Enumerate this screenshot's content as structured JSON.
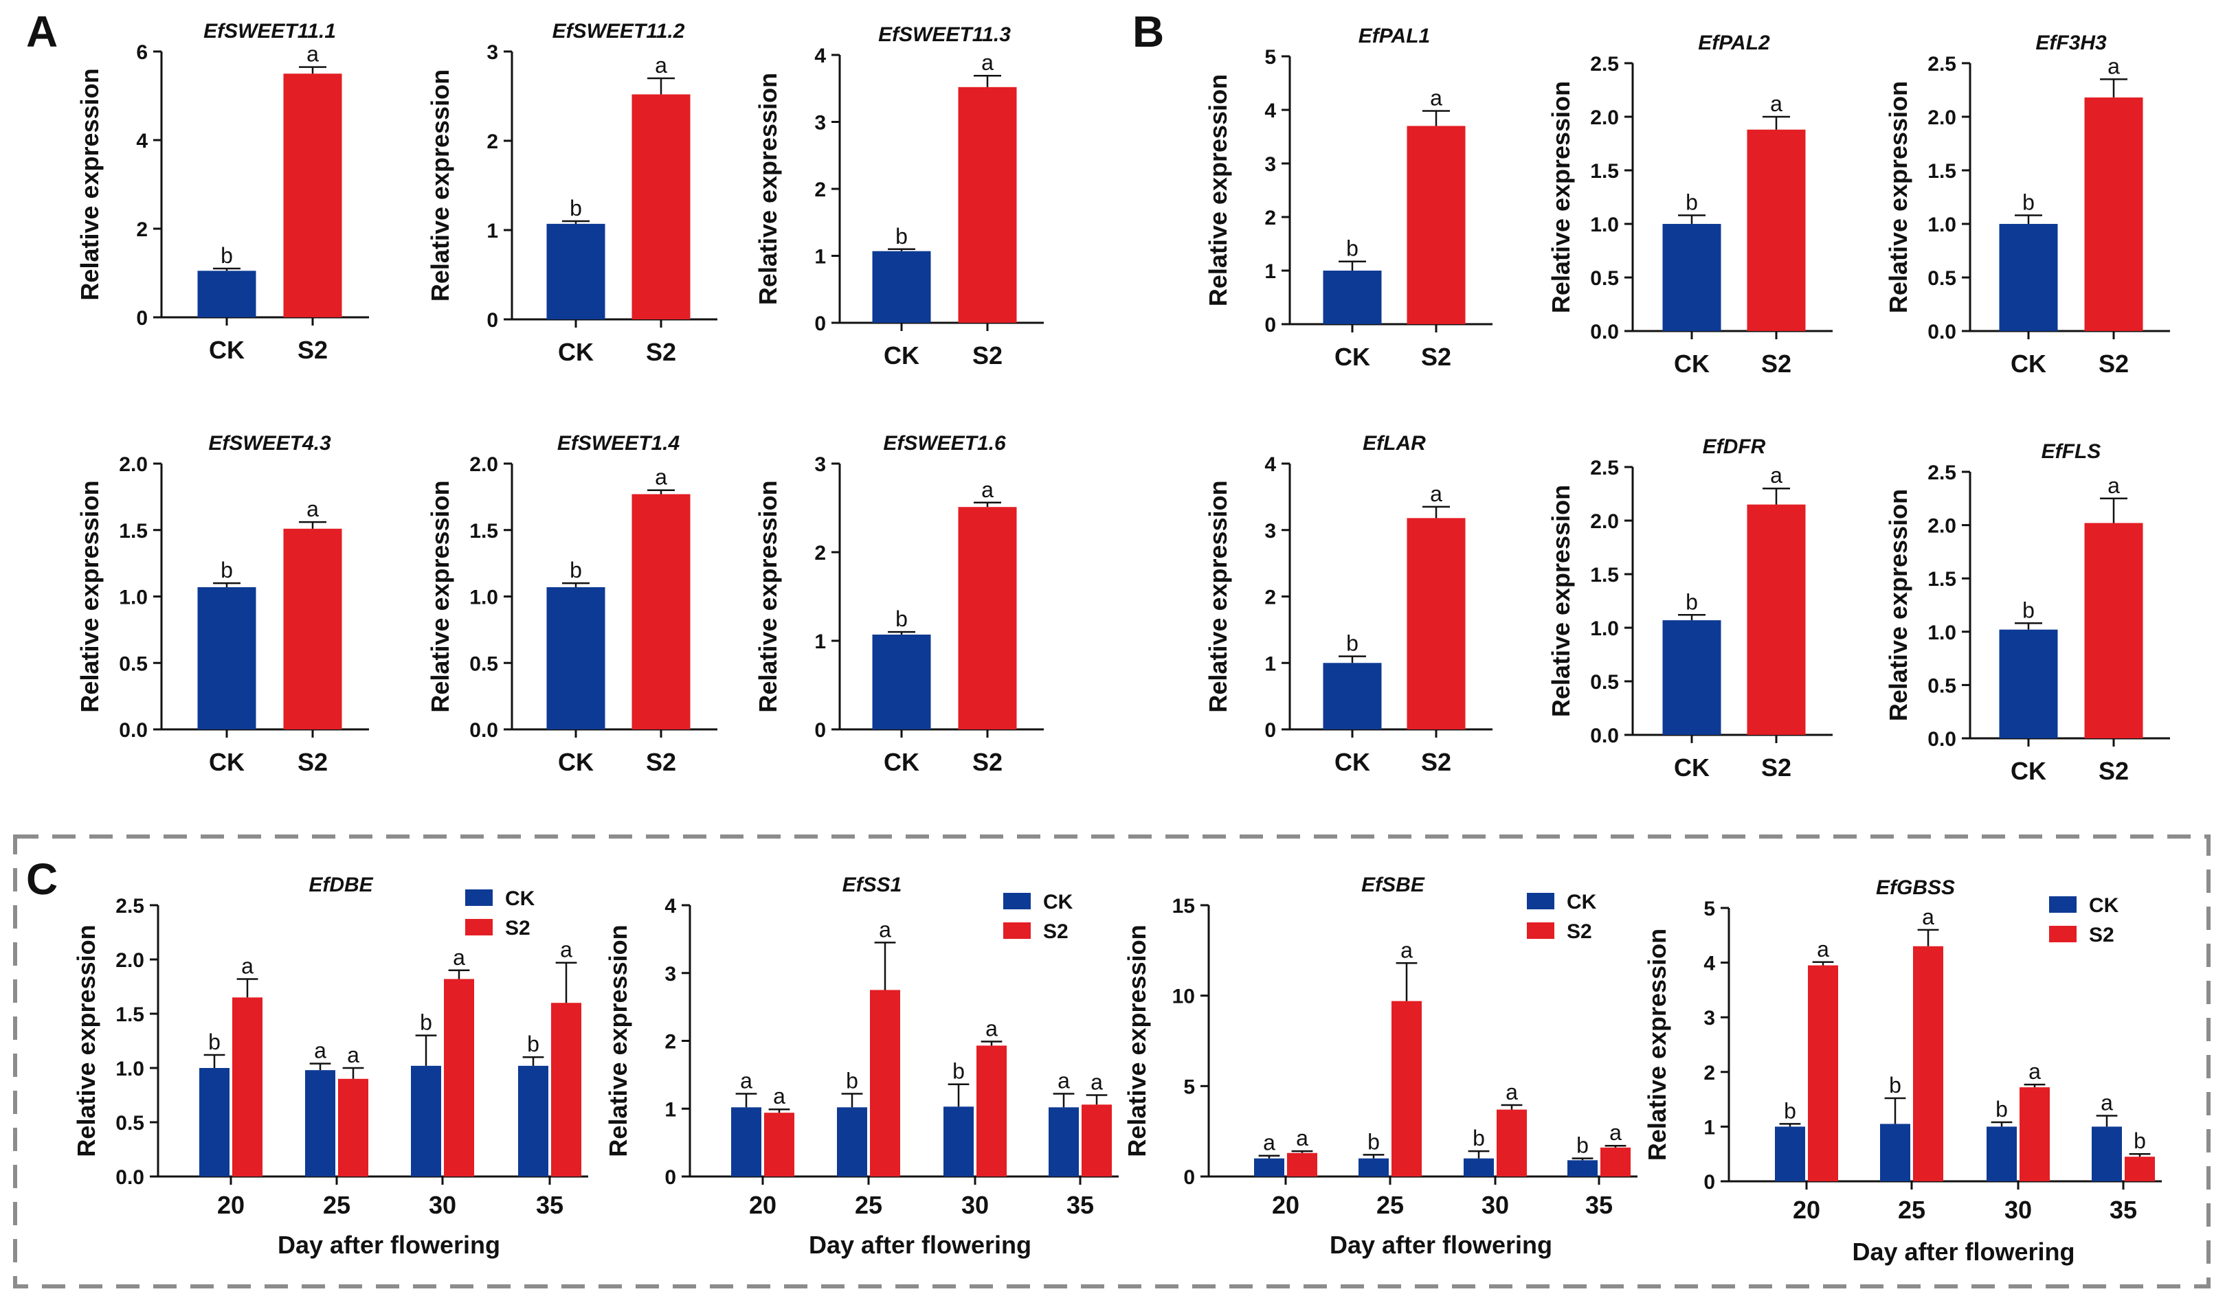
{
  "panel_labels": [
    "A",
    "B",
    "C"
  ],
  "colors": {
    "CK": "#0d3a94",
    "S2": "#e31e24",
    "axis": "#111111",
    "frame": "#8c8c8c"
  },
  "chart_data": [
    {
      "type": "bar",
      "panel": "A",
      "title": "EfSWEET11.1",
      "ylabel": "Relative expression",
      "categories": [
        "CK",
        "S2"
      ],
      "values": [
        1.05,
        5.5
      ],
      "errors": [
        0.05,
        0.15
      ],
      "letters": [
        "b",
        "a"
      ],
      "ylim": [
        0,
        6
      ],
      "yticks": [
        "0",
        "2",
        "4",
        "6"
      ]
    },
    {
      "type": "bar",
      "panel": "A",
      "title": "EfSWEET11.2",
      "ylabel": "Relative expression",
      "categories": [
        "CK",
        "S2"
      ],
      "values": [
        1.07,
        2.52
      ],
      "errors": [
        0.03,
        0.18
      ],
      "letters": [
        "b",
        "a"
      ],
      "ylim": [
        0,
        3
      ],
      "yticks": [
        "0",
        "1",
        "2",
        "3"
      ]
    },
    {
      "type": "bar",
      "panel": "A",
      "title": "EfSWEET11.3",
      "ylabel": "Relative expression",
      "categories": [
        "CK",
        "S2"
      ],
      "values": [
        1.07,
        3.52
      ],
      "errors": [
        0.03,
        0.17
      ],
      "letters": [
        "b",
        "a"
      ],
      "ylim": [
        0,
        4
      ],
      "yticks": [
        "0",
        "1",
        "2",
        "3",
        "4"
      ]
    },
    {
      "type": "bar",
      "panel": "A",
      "title": "EfSWEET4.3",
      "ylabel": "Relative expression",
      "categories": [
        "CK",
        "S2"
      ],
      "values": [
        1.07,
        1.51
      ],
      "errors": [
        0.03,
        0.05
      ],
      "letters": [
        "b",
        "a"
      ],
      "ylim": [
        0,
        2.0
      ],
      "yticks": [
        "0.0",
        "0.5",
        "1.0",
        "1.5",
        "2.0"
      ]
    },
    {
      "type": "bar",
      "panel": "A",
      "title": "EfSWEET1.4",
      "ylabel": "Relative expression",
      "categories": [
        "CK",
        "S2"
      ],
      "values": [
        1.07,
        1.77
      ],
      "errors": [
        0.03,
        0.03
      ],
      "letters": [
        "b",
        "a"
      ],
      "ylim": [
        0,
        2.0
      ],
      "yticks": [
        "0.0",
        "0.5",
        "1.0",
        "1.5",
        "2.0"
      ]
    },
    {
      "type": "bar",
      "panel": "A",
      "title": "EfSWEET1.6",
      "ylabel": "Relative expression",
      "categories": [
        "CK",
        "S2"
      ],
      "values": [
        1.07,
        2.51
      ],
      "errors": [
        0.03,
        0.05
      ],
      "letters": [
        "b",
        "a"
      ],
      "ylim": [
        0,
        3
      ],
      "yticks": [
        "0",
        "1",
        "2",
        "3"
      ]
    },
    {
      "type": "bar",
      "panel": "B",
      "title": "EfPAL1",
      "ylabel": "Relative expression",
      "categories": [
        "CK",
        "S2"
      ],
      "values": [
        1.0,
        3.7
      ],
      "errors": [
        0.17,
        0.28
      ],
      "letters": [
        "b",
        "a"
      ],
      "ylim": [
        0,
        5
      ],
      "yticks": [
        "0",
        "1",
        "2",
        "3",
        "4",
        "5"
      ]
    },
    {
      "type": "bar",
      "panel": "B",
      "title": "EfPAL2",
      "ylabel": "Relative expression",
      "categories": [
        "CK",
        "S2"
      ],
      "values": [
        1.0,
        1.88
      ],
      "errors": [
        0.08,
        0.12
      ],
      "letters": [
        "b",
        "a"
      ],
      "ylim": [
        0,
        2.5
      ],
      "yticks": [
        "0.0",
        "0.5",
        "1.0",
        "1.5",
        "2.0",
        "2.5"
      ]
    },
    {
      "type": "bar",
      "panel": "B",
      "title": "EfF3H3",
      "ylabel": "Relative expression",
      "categories": [
        "CK",
        "S2"
      ],
      "values": [
        1.0,
        2.18
      ],
      "errors": [
        0.08,
        0.17
      ],
      "letters": [
        "b",
        "a"
      ],
      "ylim": [
        0,
        2.5
      ],
      "yticks": [
        "0.0",
        "0.5",
        "1.0",
        "1.5",
        "2.0",
        "2.5"
      ]
    },
    {
      "type": "bar",
      "panel": "B",
      "title": "EfLAR",
      "ylabel": "Relative expression",
      "categories": [
        "CK",
        "S2"
      ],
      "values": [
        1.0,
        3.18
      ],
      "errors": [
        0.1,
        0.17
      ],
      "letters": [
        "b",
        "a"
      ],
      "ylim": [
        0,
        4
      ],
      "yticks": [
        "0",
        "1",
        "2",
        "3",
        "4"
      ]
    },
    {
      "type": "bar",
      "panel": "B",
      "title": "EfDFR",
      "ylabel": "Relative expression",
      "categories": [
        "CK",
        "S2"
      ],
      "values": [
        1.07,
        2.15
      ],
      "errors": [
        0.05,
        0.15
      ],
      "letters": [
        "b",
        "a"
      ],
      "ylim": [
        0,
        2.5
      ],
      "yticks": [
        "0.0",
        "0.5",
        "1.0",
        "1.5",
        "2.0",
        "2.5"
      ]
    },
    {
      "type": "bar",
      "panel": "B",
      "title": "EfFLS",
      "ylabel": "Relative expression",
      "categories": [
        "CK",
        "S2"
      ],
      "values": [
        1.02,
        2.02
      ],
      "errors": [
        0.06,
        0.23
      ],
      "letters": [
        "b",
        "a"
      ],
      "ylim": [
        0,
        2.5
      ],
      "yticks": [
        "0.0",
        "0.5",
        "1.0",
        "1.5",
        "2.0",
        "2.5"
      ]
    },
    {
      "type": "bar",
      "panel": "C",
      "title": "EfDBE",
      "ylabel": "Relative expression",
      "xlabel": "Day after flowering",
      "categories": [
        "20",
        "25",
        "30",
        "35"
      ],
      "legend": [
        "CK",
        "S2"
      ],
      "series": [
        {
          "name": "CK",
          "values": [
            1.0,
            0.98,
            1.02,
            1.02
          ],
          "errors": [
            0.12,
            0.06,
            0.28,
            0.08
          ],
          "letters": [
            "b",
            "a",
            "b",
            "b"
          ]
        },
        {
          "name": "S2",
          "values": [
            1.65,
            0.9,
            1.82,
            1.6
          ],
          "errors": [
            0.17,
            0.1,
            0.08,
            0.37
          ],
          "letters": [
            "a",
            "a",
            "a",
            "a"
          ]
        }
      ],
      "ylim": [
        0,
        2.5
      ],
      "yticks": [
        "0.0",
        "0.5",
        "1.0",
        "1.5",
        "2.0",
        "2.5"
      ]
    },
    {
      "type": "bar",
      "panel": "C",
      "title": "EfSS1",
      "ylabel": "Relative expression",
      "xlabel": "Day after flowering",
      "categories": [
        "20",
        "25",
        "30",
        "35"
      ],
      "legend": [
        "CK",
        "S2"
      ],
      "series": [
        {
          "name": "CK",
          "values": [
            1.02,
            1.02,
            1.03,
            1.02
          ],
          "errors": [
            0.2,
            0.2,
            0.33,
            0.2
          ],
          "letters": [
            "a",
            "b",
            "b",
            "a"
          ]
        },
        {
          "name": "S2",
          "values": [
            0.94,
            2.75,
            1.93,
            1.06
          ],
          "errors": [
            0.05,
            0.7,
            0.06,
            0.14
          ],
          "letters": [
            "a",
            "a",
            "a",
            "a"
          ]
        }
      ],
      "ylim": [
        0,
        4
      ],
      "yticks": [
        "0",
        "1",
        "2",
        "3",
        "4"
      ]
    },
    {
      "type": "bar",
      "panel": "C",
      "title": "EfSBE",
      "ylabel": "Relative expression",
      "xlabel": "Day after flowering",
      "categories": [
        "20",
        "25",
        "30",
        "35"
      ],
      "legend": [
        "CK",
        "S2"
      ],
      "series": [
        {
          "name": "CK",
          "values": [
            1.0,
            1.0,
            1.0,
            0.9
          ],
          "errors": [
            0.15,
            0.2,
            0.4,
            0.1
          ],
          "letters": [
            "a",
            "b",
            "b",
            "b"
          ]
        },
        {
          "name": "S2",
          "values": [
            1.3,
            9.7,
            3.7,
            1.6
          ],
          "errors": [
            0.1,
            2.1,
            0.25,
            0.1
          ],
          "letters": [
            "a",
            "a",
            "a",
            "a"
          ]
        }
      ],
      "ylim": [
        0,
        15
      ],
      "yticks": [
        "0",
        "5",
        "10",
        "15"
      ]
    },
    {
      "type": "bar",
      "panel": "C",
      "title": "EfGBSS",
      "ylabel": "Relative expression",
      "xlabel": "Day after flowering",
      "categories": [
        "20",
        "25",
        "30",
        "35"
      ],
      "legend": [
        "CK",
        "S2"
      ],
      "series": [
        {
          "name": "CK",
          "values": [
            1.0,
            1.05,
            1.0,
            1.0
          ],
          "errors": [
            0.05,
            0.47,
            0.08,
            0.2
          ],
          "letters": [
            "b",
            "b",
            "b",
            "a"
          ]
        },
        {
          "name": "S2",
          "values": [
            3.95,
            4.3,
            1.72,
            0.45
          ],
          "errors": [
            0.06,
            0.3,
            0.05,
            0.05
          ],
          "letters": [
            "a",
            "a",
            "a",
            "b"
          ]
        }
      ],
      "ylim": [
        0,
        5
      ],
      "yticks": [
        "0",
        "1",
        "2",
        "3",
        "4",
        "5"
      ]
    }
  ]
}
